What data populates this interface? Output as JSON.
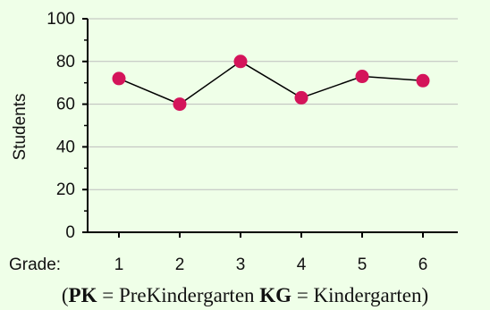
{
  "chart_data": {
    "type": "line",
    "categories": [
      "1",
      "2",
      "3",
      "4",
      "5",
      "6"
    ],
    "series": [
      {
        "values": [
          72,
          60,
          80,
          63,
          73,
          71
        ]
      }
    ],
    "xlabel": "Grade:",
    "ylabel": "Students",
    "ylim": [
      0,
      100
    ],
    "yticks": [
      "0",
      "20",
      "40",
      "60",
      "80",
      "100"
    ],
    "grid": true,
    "colors": {
      "background": "#efffe8",
      "grid": "#bdbdbd",
      "axis": "#000000",
      "line": "#000000",
      "marker": "#d4145a"
    }
  },
  "footer": {
    "open_paren": "(",
    "pk_code": "PK",
    "pk_text": " = PreKindergarten  ",
    "kg_code": "KG",
    "kg_text": " = Kindergarten)"
  }
}
